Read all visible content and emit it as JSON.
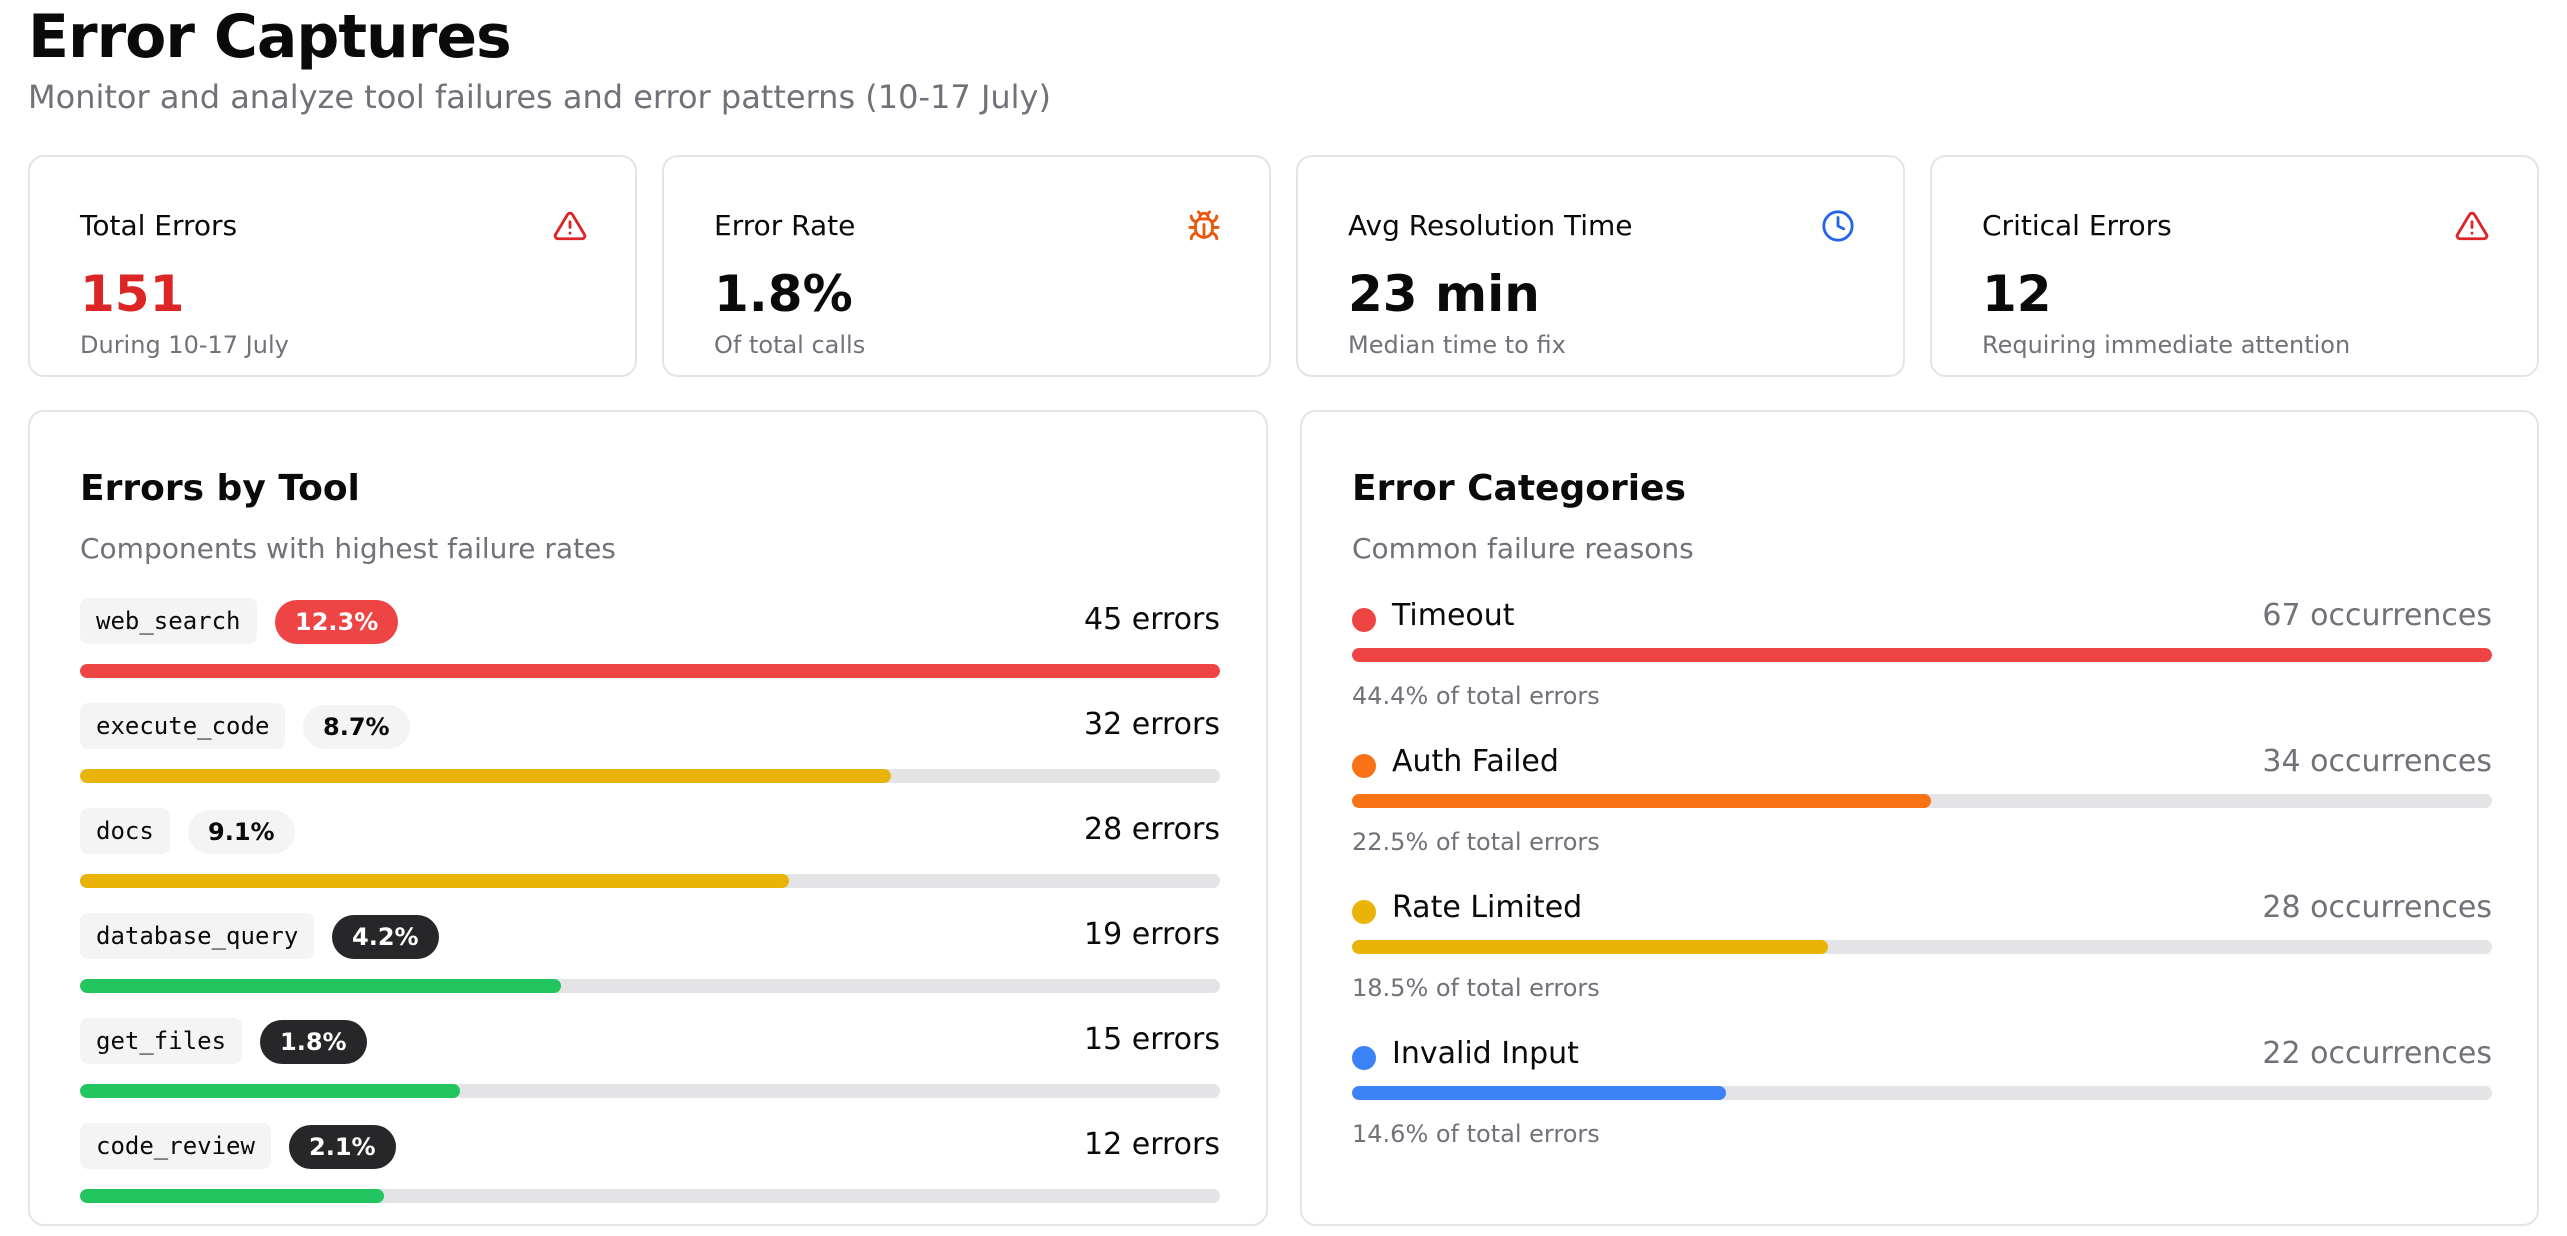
{
  "header": {
    "title": "Error Captures",
    "subtitle": "Monitor and analyze tool failures and error patterns (10-17 July)"
  },
  "stats": [
    {
      "label": "Total Errors",
      "value": "151",
      "sub": "During 10-17 July",
      "icon": "warning-triangle-icon",
      "icon_color": "#dc2626",
      "value_color": "#dc2626"
    },
    {
      "label": "Error Rate",
      "value": "1.8%",
      "sub": "Of total calls",
      "icon": "bug-icon",
      "icon_color": "#ea580c"
    },
    {
      "label": "Avg Resolution Time",
      "value": "23 min",
      "sub": "Median time to fix",
      "icon": "clock-icon",
      "icon_color": "#2563eb"
    },
    {
      "label": "Critical Errors",
      "value": "12",
      "sub": "Requiring immediate attention",
      "icon": "warning-triangle-icon",
      "icon_color": "#dc2626"
    }
  ],
  "errors_by_tool": {
    "title": "Errors by Tool",
    "subtitle": "Components with highest failure rates",
    "max_errors": 45,
    "items": [
      {
        "name": "web_search",
        "rate": "12.3%",
        "errors": 45,
        "errors_label": "45 errors",
        "severity": "high",
        "bar_color": "#ef4444"
      },
      {
        "name": "execute_code",
        "rate": "8.7%",
        "errors": 32,
        "errors_label": "32 errors",
        "severity": "mid",
        "bar_color": "#eab308"
      },
      {
        "name": "docs",
        "rate": "9.1%",
        "errors": 28,
        "errors_label": "28 errors",
        "severity": "mid",
        "bar_color": "#eab308"
      },
      {
        "name": "database_query",
        "rate": "4.2%",
        "errors": 19,
        "errors_label": "19 errors",
        "severity": "low",
        "bar_color": "#22c55e"
      },
      {
        "name": "get_files",
        "rate": "1.8%",
        "errors": 15,
        "errors_label": "15 errors",
        "severity": "low",
        "bar_color": "#22c55e"
      },
      {
        "name": "code_review",
        "rate": "2.1%",
        "errors": 12,
        "errors_label": "12 errors",
        "severity": "low",
        "bar_color": "#22c55e"
      }
    ]
  },
  "error_categories": {
    "title": "Error Categories",
    "subtitle": "Common failure reasons",
    "max_occurrences": 67,
    "items": [
      {
        "name": "Timeout",
        "count": 67,
        "count_label": "67 occurrences",
        "share": "44.4% of total errors",
        "color": "#ef4444"
      },
      {
        "name": "Auth Failed",
        "count": 34,
        "count_label": "34 occurrences",
        "share": "22.5% of total errors",
        "color": "#f97316"
      },
      {
        "name": "Rate Limited",
        "count": 28,
        "count_label": "28 occurrences",
        "share": "18.5% of total errors",
        "color": "#eab308"
      },
      {
        "name": "Invalid Input",
        "count": 22,
        "count_label": "22 occurrences",
        "share": "14.6% of total errors",
        "color": "#3b82f6"
      }
    ]
  }
}
